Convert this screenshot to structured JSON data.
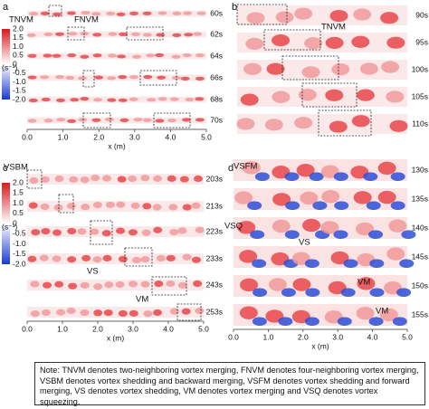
{
  "panels": [
    {
      "label": "a",
      "times": [
        "60s",
        "62s",
        "64s",
        "66s",
        "68s",
        "70s"
      ],
      "xticks": [
        "0.0",
        "1.0",
        "2.0",
        "3.0",
        "4.0",
        "5.0"
      ],
      "xlabel": "x (m)",
      "colorbar": {
        "ticks": [
          "2.0",
          "1.5",
          "1.0",
          "0.5",
          "0",
          "-0.5",
          "-1.0",
          "-1.5",
          "-2.0"
        ],
        "unit": "(s⁻¹)"
      },
      "annotations": [
        "TNVM",
        "FNVM"
      ]
    },
    {
      "label": "b",
      "times": [
        "90s",
        "95s",
        "100s",
        "105s",
        "110s"
      ],
      "annotations": [
        "TNVM"
      ]
    },
    {
      "label": "c",
      "times": [
        "203s",
        "213s",
        "223s",
        "233s",
        "243s",
        "253s"
      ],
      "xticks": [
        "0.0",
        "1.0",
        "2.0",
        "3.0",
        "4.0",
        "5.0"
      ],
      "xlabel": "x (m)",
      "colorbar": {
        "ticks": [
          "2.0",
          "1.5",
          "1.0",
          "0.5",
          "0",
          "-0.5",
          "-1.0",
          "-1.5",
          "-2.0"
        ],
        "unit": "(s⁻¹)"
      },
      "annotations": [
        "VSBM",
        "VS",
        "VM"
      ]
    },
    {
      "label": "d",
      "times": [
        "130s",
        "135s",
        "140s",
        "145s",
        "150s",
        "155s"
      ],
      "xticks": [
        "0.0",
        "1.0",
        "2.0",
        "3.0",
        "4.0",
        "5.0"
      ],
      "xlabel": "x (m)",
      "annotations": [
        "VSFM",
        "VSQ",
        "VS",
        "VM",
        "VM"
      ]
    }
  ],
  "note": "Note: TNVM denotes two-neighboring vortex merging, FNVM denotes four-neighboring vortex merging, VSBM denotes vortex shedding and backward merging, VSFM denotes vortex shedding and forward merging, VS denotes vortex shedding, VM denotes vortex merging and VSQ denotes vortex squeezing."
}
